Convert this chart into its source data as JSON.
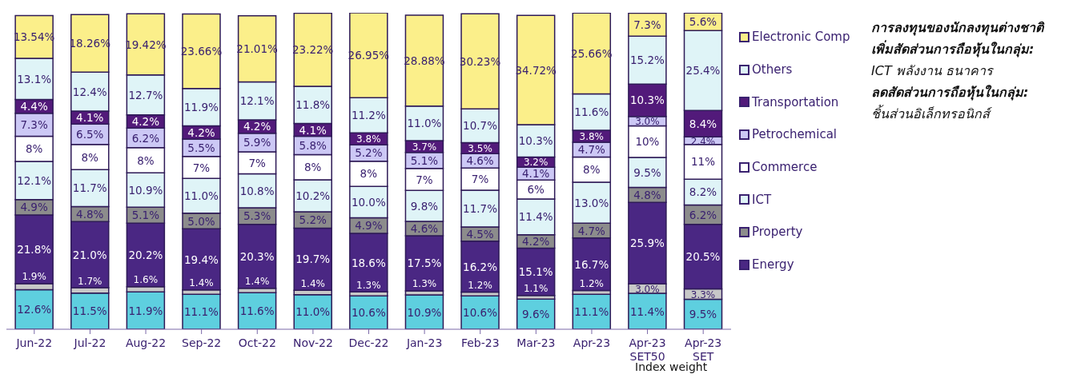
{
  "chart_data": {
    "type": "bar",
    "stacked": true,
    "legend": "right",
    "categories": [
      "Jun-22",
      "Jul-22",
      "Aug-22",
      "Sep-22",
      "Oct-22",
      "Nov-22",
      "Dec-22",
      "Jan-23",
      "Feb-23",
      "Mar-23",
      "Apr-23",
      "Apr-23 SET50",
      "Apr-23 SET"
    ],
    "series": [
      {
        "color": "#5ecfdf",
        "values": [
          12.6,
          11.5,
          11.9,
          11.1,
          11.6,
          11.0,
          10.6,
          10.9,
          10.6,
          9.6,
          11.1,
          11.4,
          9.5
        ],
        "value_labels": [
          "12.6%",
          "11.5%",
          "11.9%",
          "11.1%",
          "11.6%",
          "11.0%",
          "10.6%",
          "10.9%",
          "10.6%",
          "9.6%",
          "11.1%",
          "11.4%",
          "9.5%"
        ]
      },
      {
        "color": "#c8c8c8",
        "values": [
          1.9,
          1.7,
          1.6,
          1.4,
          1.4,
          1.4,
          1.3,
          1.3,
          1.2,
          1.1,
          1.2,
          3.0,
          3.3
        ],
        "value_labels": [
          "1.9%",
          "1.7%",
          "1.6%",
          "1.4%",
          "1.4%",
          "1.4%",
          "1.3%",
          "1.3%",
          "1.2%",
          "1.1%",
          "1.2%",
          "3.0%",
          "3.3%"
        ]
      },
      {
        "name": "Energy",
        "color": "#4a2783",
        "values": [
          21.8,
          21.0,
          20.2,
          19.4,
          20.3,
          19.7,
          18.6,
          17.5,
          16.2,
          15.1,
          16.7,
          25.9,
          20.5
        ],
        "value_labels": [
          "21.8%",
          "21.0%",
          "20.2%",
          "19.4%",
          "20.3%",
          "19.7%",
          "18.6%",
          "17.5%",
          "16.2%",
          "15.1%",
          "16.7%",
          "25.9%",
          "20.5%"
        ]
      },
      {
        "name": "Property",
        "color": "#8c8c8c",
        "values": [
          4.9,
          4.8,
          5.1,
          5.0,
          5.3,
          5.2,
          4.9,
          4.6,
          4.5,
          4.2,
          4.7,
          4.8,
          6.2
        ],
        "value_labels": [
          "4.9%",
          "4.8%",
          "5.1%",
          "5.0%",
          "5.3%",
          "5.2%",
          "4.9%",
          "4.6%",
          "4.5%",
          "4.2%",
          "4.7%",
          "4.8%",
          "6.2%"
        ]
      },
      {
        "name": "ICT",
        "color": "#dff4f7",
        "values": [
          12.1,
          11.7,
          10.9,
          11.0,
          10.8,
          10.2,
          10.0,
          9.8,
          11.7,
          11.4,
          13.0,
          9.5,
          8.2
        ],
        "value_labels": [
          "12.1%",
          "11.7%",
          "10.9%",
          "11.0%",
          "10.8%",
          "10.2%",
          "10.0%",
          "9.8%",
          "11.7%",
          "11.4%",
          "13.0%",
          "9.5%",
          "8.2%"
        ]
      },
      {
        "name": "Commerce",
        "color": "#ffffff",
        "values": [
          8,
          8,
          8,
          7,
          7,
          8,
          8,
          7,
          7,
          6,
          8,
          10,
          11
        ],
        "value_labels": [
          "8%",
          "8%",
          "8%",
          "7%",
          "7%",
          "8%",
          "8%",
          "7%",
          "7%",
          "6%",
          "8%",
          "10%",
          "11%"
        ]
      },
      {
        "name": "Petrochemical",
        "color": "#ccc8f5",
        "values": [
          7.3,
          6.5,
          6.2,
          5.5,
          5.9,
          5.8,
          5.2,
          5.1,
          4.6,
          4.1,
          4.7,
          3.0,
          2.4
        ],
        "value_labels": [
          "7.3%",
          "6.5%",
          "6.2%",
          "5.5%",
          "5.9%",
          "5.8%",
          "5.2%",
          "5.1%",
          "4.6%",
          "4.1%",
          "4.7%",
          "3.0%",
          "2.4%"
        ]
      },
      {
        "name": "Transportation",
        "color": "#521a7a",
        "values": [
          4.4,
          4.1,
          4.2,
          4.2,
          4.2,
          4.1,
          3.8,
          3.7,
          3.5,
          3.2,
          3.8,
          10.3,
          8.4
        ],
        "value_labels": [
          "4.4%",
          "4.1%",
          "4.2%",
          "4.2%",
          "4.2%",
          "4.1%",
          "3.8%",
          "3.7%",
          "3.5%",
          "3.2%",
          "3.8%",
          "10.3%",
          "8.4%"
        ]
      },
      {
        "name": "Others",
        "color": "#dff4f7",
        "values": [
          13.1,
          12.4,
          12.7,
          11.9,
          12.1,
          11.8,
          11.2,
          11.0,
          10.7,
          10.3,
          11.6,
          15.2,
          25.4
        ],
        "value_labels": [
          "13.1%",
          "12.4%",
          "12.7%",
          "11.9%",
          "12.1%",
          "11.8%",
          "11.2%",
          "11.0%",
          "10.7%",
          "10.3%",
          "11.6%",
          "15.2%",
          "25.4%"
        ]
      },
      {
        "name": "Electronic Comp",
        "color": "#fbef8a",
        "values": [
          13.54,
          18.26,
          19.42,
          23.66,
          21.01,
          23.22,
          26.95,
          28.88,
          30.23,
          34.72,
          25.66,
          7.3,
          5.6
        ],
        "value_labels": [
          "13.54%",
          "18.26%",
          "19.42%",
          "23.66%",
          "21.01%",
          "23.22%",
          "26.95%",
          "28.88%",
          "30.23%",
          "34.72%",
          "25.66%",
          "7.3%",
          "5.6%"
        ]
      }
    ],
    "annotations": [
      "การลงทุนของนักลงทุนต่างชาติ",
      "เพิ่มสัดส่วนการถือหุ้นในกลุ่ม:",
      "ICT พลังงาน ธนาคาร",
      "ลดสัดส่วนการถือหุ้นในกลุ่ม:",
      "ชิ้นส่วนอิเล็กทรอนิกส์",
      "Index weight"
    ]
  }
}
